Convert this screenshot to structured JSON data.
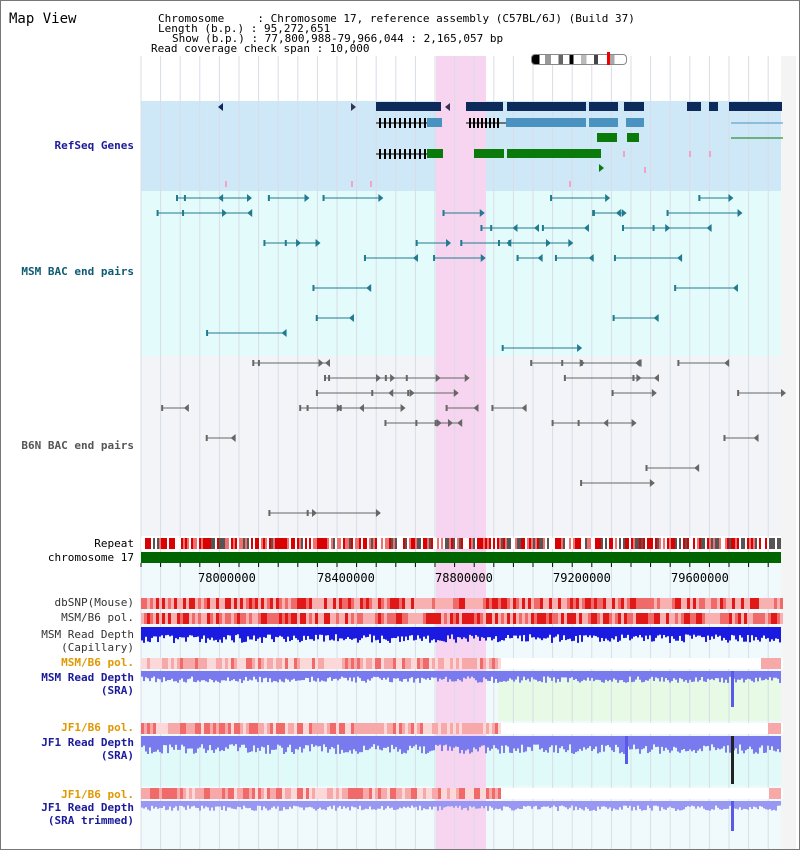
{
  "title": "Map View",
  "info": {
    "lines": [
      "Chromosome     : Chromosome 17, reference assembly (C57BL/6J) (Build 37)",
      "Length (b.p.) : 95,272,651",
      "Show (b.p.) : 77,800,988-79,966,044 : 2,165,057 bp",
      "Read coverage check span : 10,000"
    ]
  },
  "tracks": {
    "refseq": "RefSeq Genes",
    "msm_bac": "MSM BAC end pairs",
    "b6n_bac": "B6N BAC end pairs",
    "repeat": "Repeat",
    "chromosome": "chromosome 17",
    "dbsnp": "dbSNP(Mouse)",
    "msm_b6_pol_a": "MSM/B6 pol.",
    "msm_read_depth_cap_1": "MSM Read Depth",
    "msm_read_depth_cap_2": "(Capillary)",
    "msm_b6_pol_b": "MSM/B6 pol.",
    "msm_read_depth_sra_1": "MSM Read Depth",
    "msm_read_depth_sra_2": "(SRA)",
    "jf1_b6_pol_a": "JF1/B6 pol.",
    "jf1_read_depth_sra_1": "JF1 Read Depth",
    "jf1_read_depth_sra_2": "(SRA)",
    "jf1_b6_pol_b": "JF1/B6 pol.",
    "jf1_read_depth_trim_1": "JF1 Read Depth",
    "jf1_read_depth_trim_2": "(SRA trimmed)"
  },
  "axis": {
    "ticks": [
      "78000000",
      "78400000",
      "78800000",
      "79200000",
      "79600000"
    ]
  },
  "colors": {
    "refseq_bg": "#cfe8f8",
    "msm_bg": "#e4fbfb",
    "b6n_bg": "#f2f4f8",
    "highlight": "#f7d4f0",
    "navy": "#0c2a5a",
    "gene_blue": "#4a92c0",
    "gene_green": "#0a7a0a",
    "bac_teal": "#217a8f",
    "bac_grey": "#666666",
    "chrom_green": "#006400",
    "depth_blue": "#1a1ae0",
    "depth_light": "#7a7aef",
    "label_blue": "#1a1a9a",
    "label_orange": "#e09800",
    "label_teal": "#0d5a75"
  }
}
